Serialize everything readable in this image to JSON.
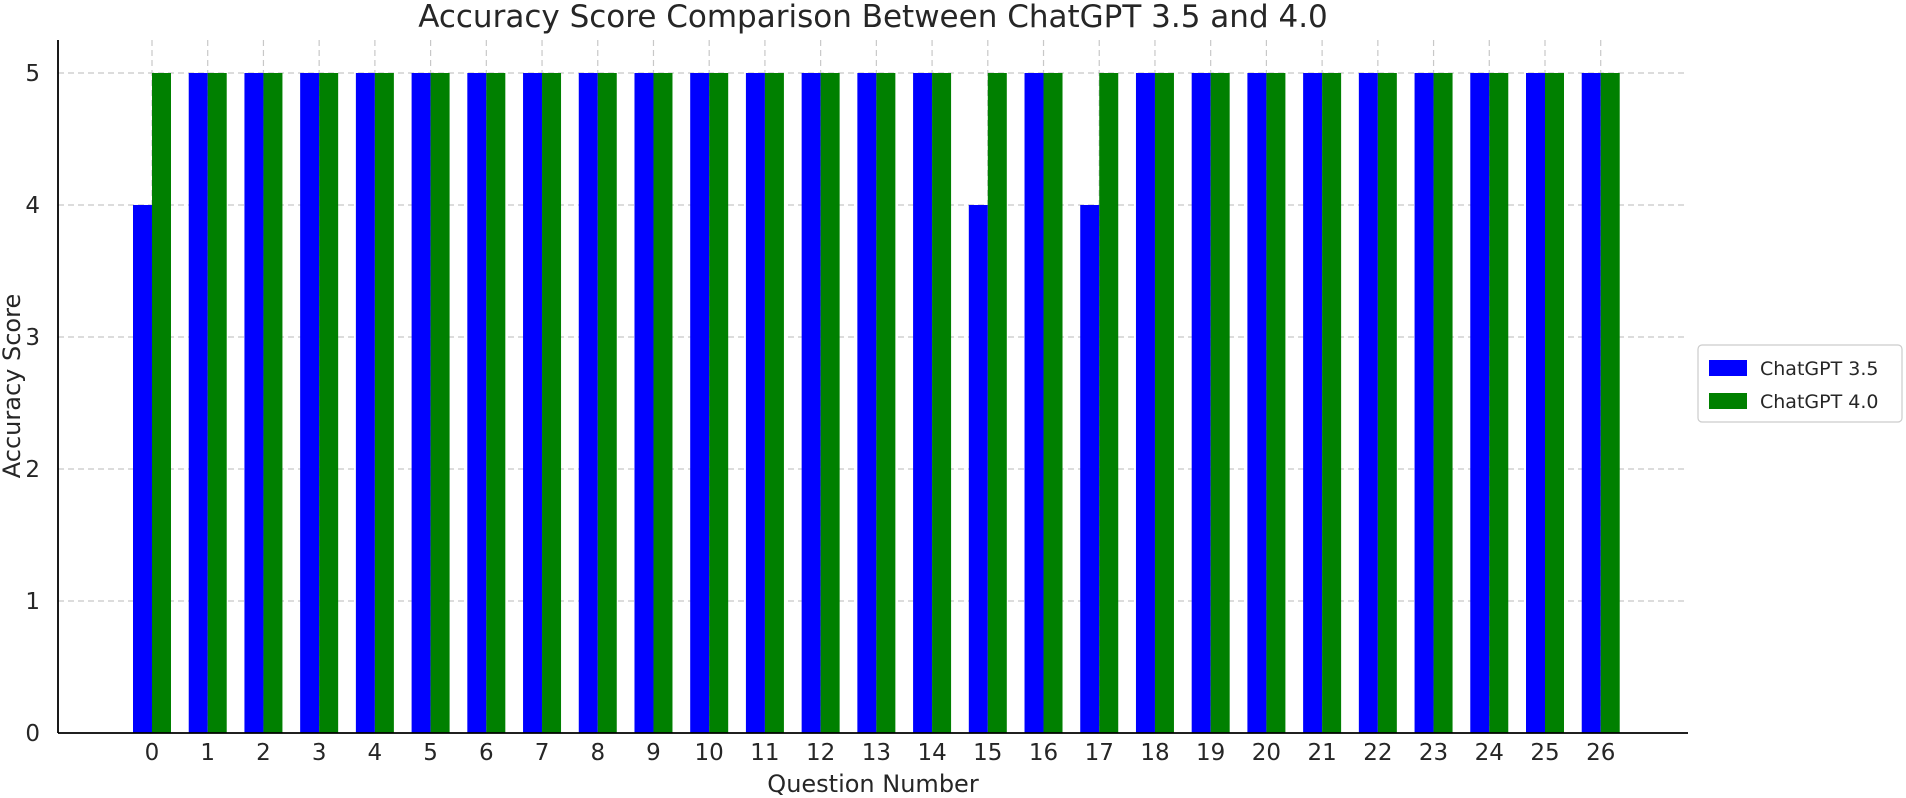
{
  "chart_data": {
    "type": "bar",
    "title": "Accuracy Score Comparison Between ChatGPT 3.5 and 4.0",
    "xlabel": "Question Number",
    "ylabel": "Accuracy Score",
    "categories": [
      "0",
      "1",
      "2",
      "3",
      "4",
      "5",
      "6",
      "7",
      "8",
      "9",
      "10",
      "11",
      "12",
      "13",
      "14",
      "15",
      "16",
      "17",
      "18",
      "19",
      "20",
      "21",
      "22",
      "23",
      "24",
      "25",
      "26"
    ],
    "series": [
      {
        "name": "ChatGPT 3.5",
        "color": "#0000ff",
        "values": [
          4,
          5,
          5,
          5,
          5,
          5,
          5,
          5,
          5,
          5,
          5,
          5,
          5,
          5,
          5,
          4,
          5,
          4,
          5,
          5,
          5,
          5,
          5,
          5,
          5,
          5,
          5
        ]
      },
      {
        "name": "ChatGPT 4.0",
        "color": "#008000",
        "values": [
          5,
          5,
          5,
          5,
          5,
          5,
          5,
          5,
          5,
          5,
          5,
          5,
          5,
          5,
          5,
          5,
          5,
          5,
          5,
          5,
          5,
          5,
          5,
          5,
          5,
          5,
          5
        ]
      }
    ],
    "ylim": [
      0,
      5.25
    ],
    "yticks": [
      "0",
      "1",
      "2",
      "3",
      "4",
      "5"
    ],
    "grid": true,
    "legend_position": "center-right"
  }
}
